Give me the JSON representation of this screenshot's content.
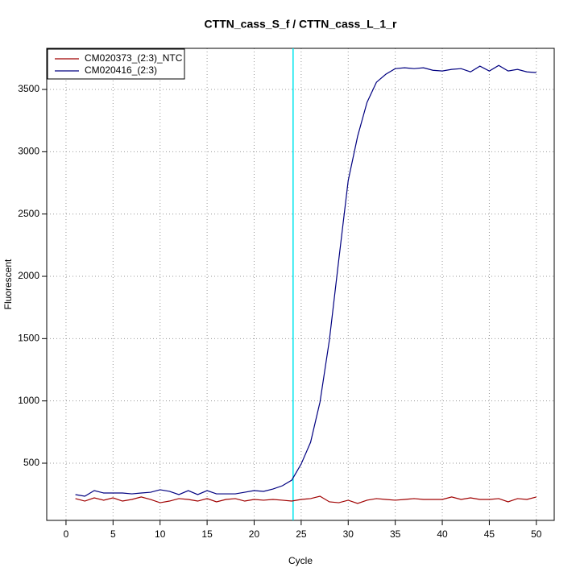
{
  "chart_data": {
    "type": "line",
    "title": "CTTN_cass_S_f / CTTN_cass_L_1_r",
    "x_label": "Cycle",
    "y_label": "Fluorescent",
    "x": [
      1,
      2,
      3,
      4,
      5,
      6,
      7,
      8,
      9,
      10,
      11,
      12,
      13,
      14,
      15,
      16,
      17,
      18,
      19,
      20,
      21,
      22,
      23,
      24,
      25,
      26,
      27,
      28,
      29,
      30,
      31,
      32,
      33,
      34,
      35,
      36,
      37,
      38,
      39,
      40,
      41,
      42,
      43,
      44,
      45,
      46,
      47,
      48,
      49,
      50
    ],
    "series": [
      {
        "name": "CM020373_(2:3)_NTC",
        "color": "#a00000",
        "values": [
          216,
          196,
          222,
          203,
          222,
          196,
          209,
          229,
          209,
          183,
          196,
          216,
          209,
          196,
          216,
          190,
          209,
          216,
          196,
          209,
          203,
          209,
          203,
          196,
          209,
          216,
          235,
          190,
          183,
          203,
          177,
          203,
          216,
          209,
          203,
          209,
          216,
          209,
          209,
          209,
          229,
          209,
          222,
          209,
          209,
          216,
          190,
          216,
          209,
          229
        ]
      },
      {
        "name": "CM020416_(2:3)",
        "color": "#000080",
        "values": [
          248,
          235,
          280,
          261,
          261,
          261,
          254,
          261,
          267,
          287,
          274,
          248,
          280,
          248,
          280,
          254,
          254,
          254,
          267,
          280,
          274,
          293,
          319,
          364,
          494,
          668,
          991,
          1489,
          2135,
          2769,
          3124,
          3396,
          3558,
          3622,
          3667,
          3674,
          3667,
          3674,
          3654,
          3648,
          3661,
          3667,
          3641,
          3687,
          3648,
          3693,
          3648,
          3661,
          3641,
          3635
        ]
      }
    ],
    "vline": {
      "x": 24.14,
      "color": "#00e5ee"
    },
    "xlim": [
      -2.05,
      51.9
    ],
    "ylim": [
      41,
      3830
    ],
    "xticks": [
      0,
      5,
      10,
      15,
      20,
      25,
      30,
      35,
      40,
      45,
      50
    ],
    "yticks": [
      500,
      1000,
      1500,
      2000,
      2500,
      3000,
      3500
    ],
    "grid": true,
    "legend": "top-left"
  }
}
